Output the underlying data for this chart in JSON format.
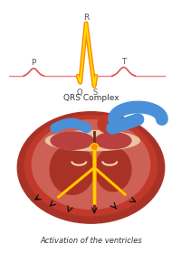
{
  "title": "",
  "qrs_label": "QRS Complex",
  "bottom_label": "Activation of the ventricles",
  "bg_color": "#ffffff",
  "ecg_baseline_color": "#f08080",
  "p_label": "P",
  "q_label": "Q",
  "r_label": "R",
  "s_label": "S",
  "t_label": "T",
  "label_color": "#555555",
  "qrs_orange": "#ff8800",
  "qrs_yellow": "#ffdd00",
  "aorta_color": "#4a90d9"
}
